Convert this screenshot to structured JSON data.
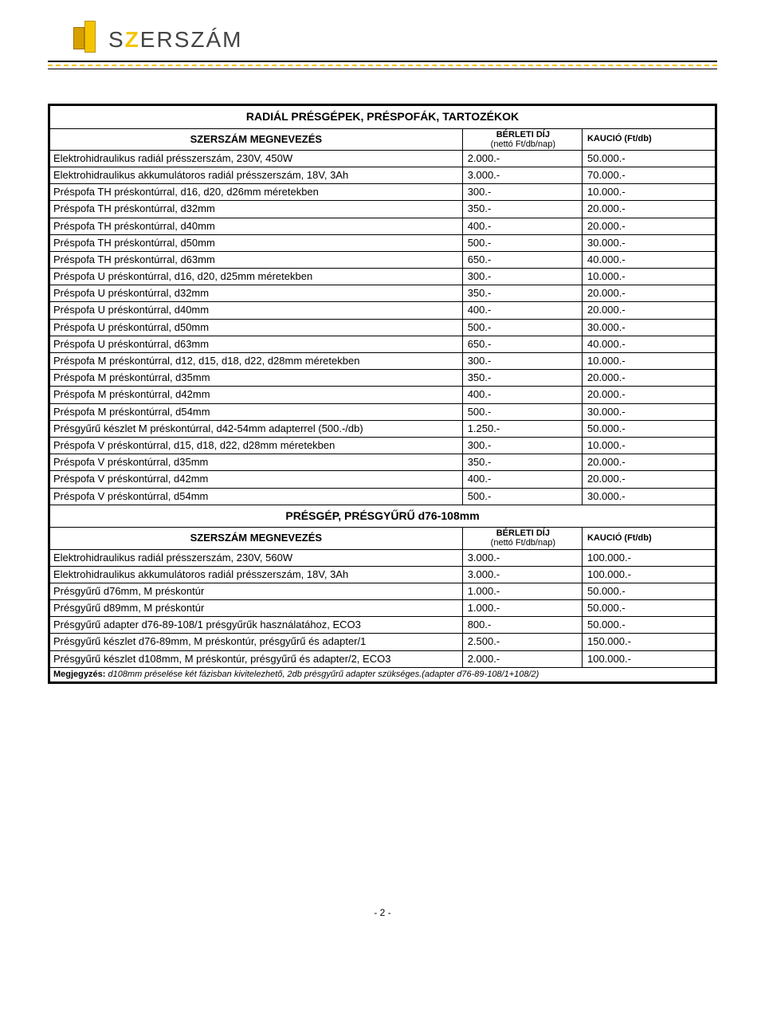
{
  "logo": {
    "text_before": "S",
    "slash": "Z",
    "text_after": "ERSZÁM"
  },
  "table1": {
    "title": "RADIÁL PRÉSGÉPEK, PRÉSPOFÁK, TARTOZÉKOK",
    "headers": {
      "name": "SZERSZÁM MEGNEVEZÉS",
      "price_line1": "BÉRLETI DÍJ",
      "price_line2": "(nettó Ft/db/nap)",
      "deposit": "KAUCIÓ (Ft/db)"
    },
    "rows": [
      {
        "name": "Elektrohidraulikus radiál présszerszám, 230V, 450W",
        "price": "2.000.-",
        "dep": "50.000.-"
      },
      {
        "name": "Elektrohidraulikus akkumulátoros radiál présszerszám, 18V, 3Ah",
        "price": "3.000.-",
        "dep": "70.000.-"
      },
      {
        "name": "Préspofa TH préskontúrral, d16, d20, d26mm méretekben",
        "price": "300.-",
        "dep": "10.000.-"
      },
      {
        "name": "Préspofa TH préskontúrral, d32mm",
        "price": "350.-",
        "dep": "20.000.-"
      },
      {
        "name": "Préspofa TH préskontúrral, d40mm",
        "price": "400.-",
        "dep": "20.000.-"
      },
      {
        "name": "Préspofa TH préskontúrral, d50mm",
        "price": "500.-",
        "dep": "30.000.-"
      },
      {
        "name": "Préspofa TH préskontúrral, d63mm",
        "price": "650.-",
        "dep": "40.000.-"
      },
      {
        "name": "Préspofa U préskontúrral, d16, d20, d25mm méretekben",
        "price": "300.-",
        "dep": "10.000.-"
      },
      {
        "name": "Préspofa U préskontúrral, d32mm",
        "price": "350.-",
        "dep": "20.000.-"
      },
      {
        "name": "Préspofa U préskontúrral, d40mm",
        "price": "400.-",
        "dep": "20.000.-"
      },
      {
        "name": "Préspofa U préskontúrral, d50mm",
        "price": "500.-",
        "dep": "30.000.-"
      },
      {
        "name": "Préspofa U préskontúrral, d63mm",
        "price": "650.-",
        "dep": "40.000.-"
      },
      {
        "name": "Préspofa M préskontúrral, d12, d15, d18, d22, d28mm méretekben",
        "price": "300.-",
        "dep": "10.000.-"
      },
      {
        "name": "Préspofa M préskontúrral, d35mm",
        "price": "350.-",
        "dep": "20.000.-"
      },
      {
        "name": "Préspofa M préskontúrral, d42mm",
        "price": "400.-",
        "dep": "20.000.-"
      },
      {
        "name": "Préspofa M préskontúrral, d54mm",
        "price": "500.-",
        "dep": "30.000.-"
      },
      {
        "name": "Présgyűrű készlet M préskontúrral, d42-54mm adapterrel (500.-/db)",
        "price": "1.250.-",
        "dep": "50.000.-"
      },
      {
        "name": "Préspofa V préskontúrral, d15, d18, d22, d28mm méretekben",
        "price": "300.-",
        "dep": "10.000.-"
      },
      {
        "name": "Préspofa V préskontúrral, d35mm",
        "price": "350.-",
        "dep": "20.000.-"
      },
      {
        "name": "Préspofa V préskontúrral, d42mm",
        "price": "400.-",
        "dep": "20.000.-"
      },
      {
        "name": "Préspofa V préskontúrral, d54mm",
        "price": "500.-",
        "dep": "30.000.-"
      }
    ]
  },
  "table2": {
    "title": "PRÉSGÉP, PRÉSGYŰRŰ d76-108mm",
    "headers": {
      "name": "SZERSZÁM MEGNEVEZÉS",
      "price_line1": "BÉRLETI DÍJ",
      "price_line2": "(nettó Ft/db/nap)",
      "deposit": "KAUCIÓ (Ft/db)"
    },
    "rows": [
      {
        "name": "Elektrohidraulikus radiál présszerszám, 230V, 560W",
        "price": "3.000.-",
        "dep": "100.000.-"
      },
      {
        "name": "Elektrohidraulikus akkumulátoros radiál présszerszám, 18V, 3Ah",
        "price": "3.000.-",
        "dep": "100.000.-"
      },
      {
        "name": "Présgyűrű d76mm, M préskontúr",
        "price": "1.000.-",
        "dep": "50.000.-"
      },
      {
        "name": "Présgyűrű d89mm, M préskontúr",
        "price": "1.000.-",
        "dep": "50.000.-"
      },
      {
        "name": "Présgyűrű adapter d76-89-108/1 présgyűrűk használatához, ECO3",
        "price": "800.-",
        "dep": "50.000.-"
      },
      {
        "name": "Présgyűrű készlet d76-89mm, M préskontúr, présgyűrű és adapter/1",
        "price": "2.500.-",
        "dep": "150.000.-",
        "justify": true
      },
      {
        "name": "Présgyűrű készlet d108mm, M préskontúr, présgyűrű és adapter/2, ECO3",
        "price": "2.000.-",
        "dep": "100.000.-"
      }
    ],
    "note_label": "Megjegyzés:",
    "note_text": " d108mm préselése két fázisban kivitelezhető, 2db présgyűrű adapter szükséges.(adapter d76-89-108/1+108/2)"
  },
  "footer": "- 2 -",
  "colors": {
    "accent": "#f5c400",
    "border": "#000000",
    "text": "#000000"
  }
}
